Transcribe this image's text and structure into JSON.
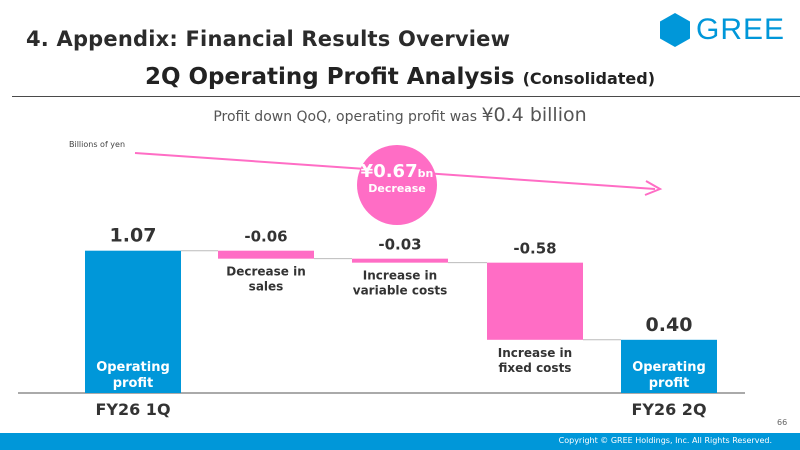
{
  "section_title": "4. Appendix: Financial Results Overview",
  "logo": {
    "text": "GREE"
  },
  "title": {
    "main": "2Q Operating Profit Analysis",
    "sub": "(Consolidated)"
  },
  "headline": {
    "text": "Profit down QoQ, operating profit was",
    "value": "¥0.4 billion"
  },
  "unit_label": "Billions of yen",
  "decrease_callout": {
    "value": "¥0.67",
    "unit": "bn",
    "label": "Decrease"
  },
  "colors": {
    "blue": "#0097d9",
    "pink": "#ff6dc5",
    "text": "#333333"
  },
  "chart_data": {
    "type": "bar",
    "variant": "waterfall",
    "steps": [
      {
        "kind": "total",
        "value": 1.07,
        "value_label": "1.07",
        "inner_label": [
          "Operating",
          "profit"
        ],
        "category": "FY26 1Q"
      },
      {
        "kind": "delta",
        "value": -0.06,
        "value_label": "-0.06",
        "below_label": [
          "Decrease in",
          "sales"
        ]
      },
      {
        "kind": "delta",
        "value": -0.03,
        "value_label": "-0.03",
        "below_label": [
          "Increase in",
          "variable costs"
        ]
      },
      {
        "kind": "delta",
        "value": -0.58,
        "value_label": "-0.58",
        "below_label": [
          "Increase in",
          "fixed costs"
        ]
      },
      {
        "kind": "total",
        "value": 0.4,
        "value_label": "0.40",
        "inner_label": [
          "Operating",
          "profit"
        ],
        "category": "FY26 2Q"
      }
    ]
  },
  "footer": {
    "copyright": "Copyright © GREE Holdings, Inc. All Rights Reserved.",
    "page_number": "66"
  }
}
